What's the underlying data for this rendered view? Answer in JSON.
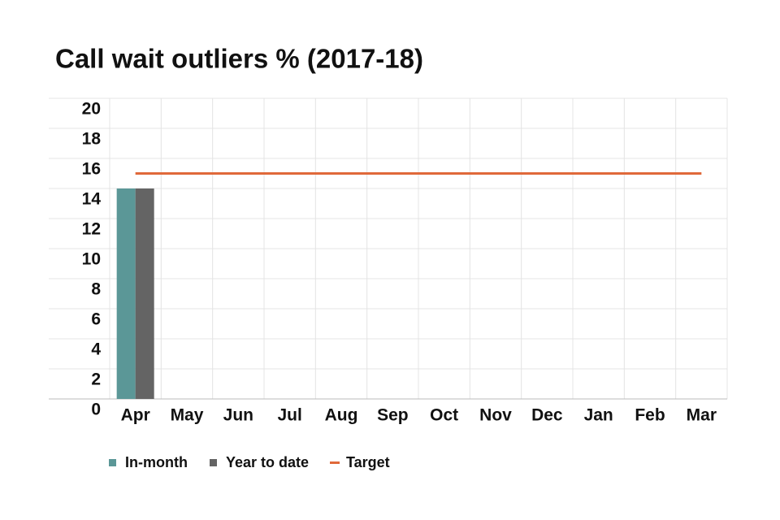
{
  "chart_data": {
    "type": "bar",
    "title": "Call wait outliers % (2017-18)",
    "categories": [
      "Apr",
      "May",
      "Jun",
      "Jul",
      "Aug",
      "Sep",
      "Oct",
      "Nov",
      "Dec",
      "Jan",
      "Feb",
      "Mar"
    ],
    "series": [
      {
        "name": "In-month",
        "color": "#5b9797",
        "values": [
          14,
          null,
          null,
          null,
          null,
          null,
          null,
          null,
          null,
          null,
          null,
          null
        ]
      },
      {
        "name": "Year to date",
        "color": "#646464",
        "values": [
          14,
          null,
          null,
          null,
          null,
          null,
          null,
          null,
          null,
          null,
          null,
          null
        ]
      },
      {
        "name": "Target",
        "color": "#e0693a",
        "type": "line",
        "values": [
          15,
          15,
          15,
          15,
          15,
          15,
          15,
          15,
          15,
          15,
          15,
          15
        ]
      }
    ],
    "ylim": [
      0,
      20
    ],
    "yticks": [
      0,
      2,
      4,
      6,
      8,
      10,
      12,
      14,
      16,
      18,
      20
    ],
    "grid": true,
    "legend": "bottom"
  }
}
